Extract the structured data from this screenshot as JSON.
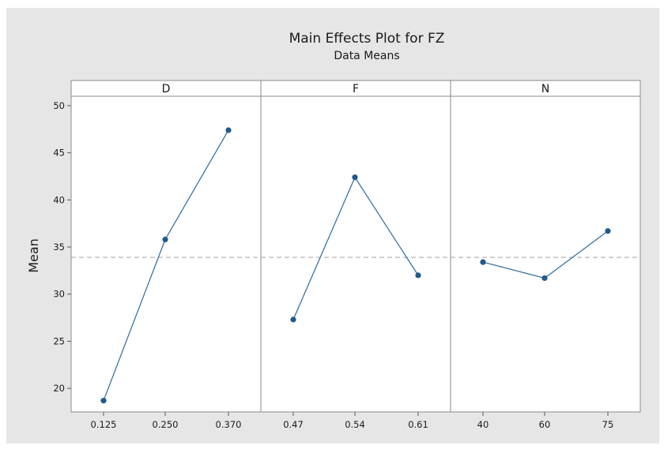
{
  "chart_data": {
    "type": "line",
    "title": "Main Effects Plot for FZ",
    "subtitle": "Data Means",
    "ylabel": "Mean",
    "ylim": [
      17.5,
      51
    ],
    "yticks": [
      20,
      25,
      30,
      35,
      40,
      45,
      50
    ],
    "mean_line": 33.9,
    "grid": false,
    "colors": {
      "line": "#2e6a9a",
      "marker": "#1f5a8c",
      "reference": "#a0a0a0",
      "background": "#e6e6e6"
    },
    "panels": [
      {
        "factor": "D",
        "categories": [
          "0.125",
          "0.250",
          "0.370"
        ],
        "values": [
          18.7,
          35.8,
          47.4
        ]
      },
      {
        "factor": "F",
        "categories": [
          "0.47",
          "0.54",
          "0.61"
        ],
        "values": [
          27.3,
          42.4,
          32.0
        ]
      },
      {
        "factor": "N",
        "categories": [
          "40",
          "60",
          "75"
        ],
        "values": [
          33.4,
          31.7,
          36.7
        ]
      }
    ]
  }
}
